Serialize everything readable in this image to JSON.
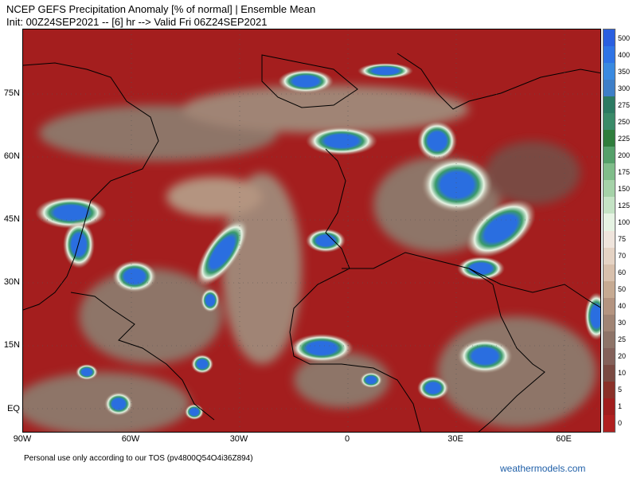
{
  "header": {
    "title_line1": "NCEP GEFS Precipitation Anomaly [% of normal] | Ensemble Mean",
    "title_line2": "Init: 00Z24SEP2021 -- [6] hr --> Valid Fri 06Z24SEP2021"
  },
  "map": {
    "lat_labels": [
      "75N",
      "60N",
      "45N",
      "30N",
      "15N",
      "EQ"
    ],
    "lon_labels": [
      "90W",
      "60W",
      "30W",
      "0",
      "30E",
      "60E"
    ]
  },
  "colorbar": {
    "labels": [
      "500",
      "400",
      "350",
      "300",
      "275",
      "250",
      "225",
      "200",
      "175",
      "150",
      "125",
      "100",
      "75",
      "70",
      "60",
      "50",
      "40",
      "30",
      "25",
      "20",
      "10",
      "5",
      "1",
      "0"
    ],
    "colors": [
      "#2a5fe0",
      "#2f74e6",
      "#3a8ae0",
      "#3e7fc8",
      "#2c7a62",
      "#3a8a68",
      "#2f7d3c",
      "#55a06a",
      "#80bd8a",
      "#a5d2a8",
      "#c5e3c5",
      "#e6f3e3",
      "#efe4dc",
      "#e5d3c4",
      "#d8c0ac",
      "#c6aa92",
      "#b49480",
      "#a08474",
      "#8e7468",
      "#84615a",
      "#7a4a42",
      "#8a3028",
      "#a01e1e",
      "#b02020"
    ]
  },
  "footer": {
    "tos": "Personal use only according to our TOS (pv4800Q54O4i36Z894)",
    "brand": "weathermodels.com"
  }
}
